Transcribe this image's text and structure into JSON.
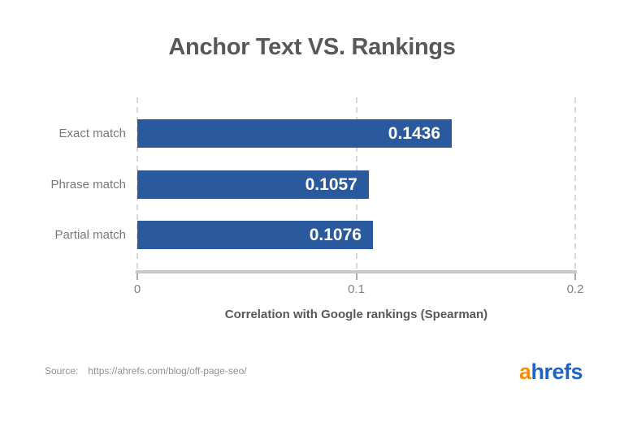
{
  "title": "Anchor Text VS. Rankings",
  "chart_data": {
    "type": "bar",
    "orientation": "horizontal",
    "title": "Anchor Text VS. Rankings",
    "categories": [
      "Exact match",
      "Phrase match",
      "Partial match"
    ],
    "values": [
      0.1436,
      0.1057,
      0.1076
    ],
    "value_labels": [
      "0.1436",
      "0.1057",
      "0.1076"
    ],
    "xlabel": "Correlation with Google rankings (Spearman)",
    "ylabel": "",
    "xlim": [
      0,
      0.2
    ],
    "xticks": [
      0,
      0.1,
      0.2
    ],
    "xtick_labels": [
      "0",
      "0.1",
      "0.2"
    ],
    "grid": true,
    "legend": false
  },
  "colors": {
    "bar": "#2a5a9d",
    "value_label": "#ffffff",
    "title": "#57585a",
    "category_label": "#77787b",
    "tick_label": "#7f8184",
    "axis_line": "#c7c7c7",
    "gridline": "#d7d7d7",
    "source_text": "#8f9092",
    "logo_orange": "#fc8b00",
    "logo_blue": "#1e63c8"
  },
  "footer": {
    "source_label": "Source:",
    "source_url": "https://ahrefs.com/blog/off-page-seo/",
    "logo": {
      "text_orange": "a",
      "text_blue": "hrefs"
    }
  }
}
